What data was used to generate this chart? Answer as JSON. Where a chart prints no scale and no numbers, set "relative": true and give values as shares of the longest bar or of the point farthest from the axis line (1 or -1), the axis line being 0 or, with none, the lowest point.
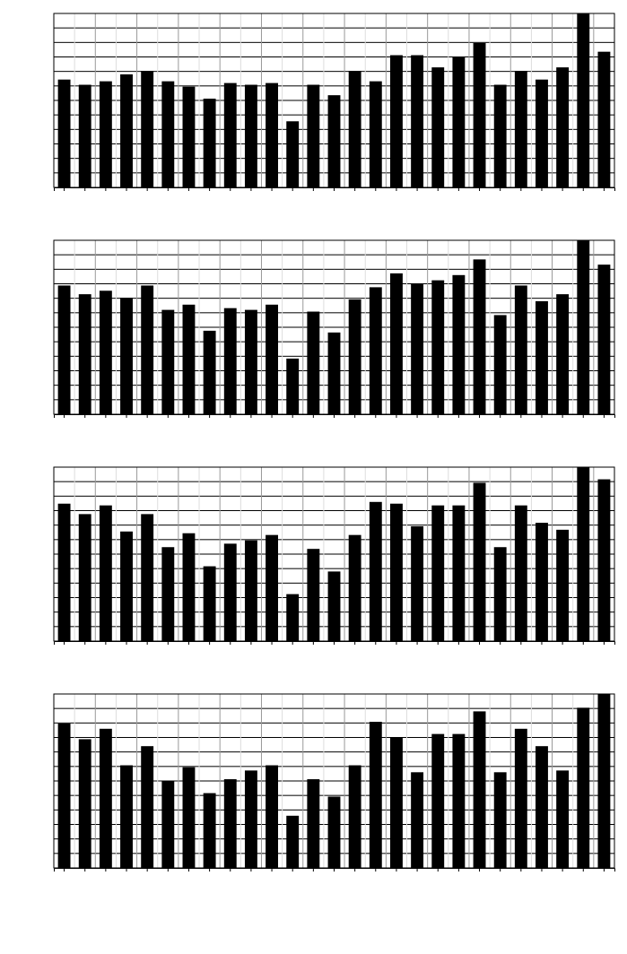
{
  "chart_data": [
    {
      "type": "bar",
      "relative": true,
      "grid": true,
      "color": "#000000",
      "categories": [
        null,
        null,
        null,
        null,
        null,
        null,
        null,
        null,
        null,
        null,
        null,
        null,
        null,
        null,
        null,
        null,
        null,
        null,
        null,
        null,
        null,
        null,
        null,
        null,
        null,
        null,
        null
      ],
      "values": [
        0.62,
        0.59,
        0.61,
        0.65,
        0.67,
        0.61,
        0.58,
        0.51,
        0.6,
        0.59,
        0.6,
        0.38,
        0.59,
        0.53,
        0.67,
        0.61,
        0.76,
        0.76,
        0.69,
        0.75,
        0.83,
        0.59,
        0.67,
        0.62,
        0.69,
        1,
        0.78
      ]
    },
    {
      "type": "bar",
      "relative": true,
      "grid": true,
      "color": "#000000",
      "categories": [
        null,
        null,
        null,
        null,
        null,
        null,
        null,
        null,
        null,
        null,
        null,
        null,
        null,
        null,
        null,
        null,
        null,
        null,
        null,
        null,
        null,
        null,
        null,
        null,
        null,
        null,
        null
      ],
      "values": [
        0.74,
        0.69,
        0.71,
        0.67,
        0.74,
        0.6,
        0.63,
        0.48,
        0.61,
        0.6,
        0.63,
        0.32,
        0.59,
        0.47,
        0.66,
        0.73,
        0.81,
        0.75,
        0.77,
        0.8,
        0.89,
        0.57,
        0.74,
        0.65,
        0.69,
        1,
        0.86
      ]
    },
    {
      "type": "bar",
      "relative": true,
      "grid": true,
      "color": "#000000",
      "categories": [
        null,
        null,
        null,
        null,
        null,
        null,
        null,
        null,
        null,
        null,
        null,
        null,
        null,
        null,
        null,
        null,
        null,
        null,
        null,
        null,
        null,
        null,
        null,
        null,
        null,
        null,
        null
      ],
      "values": [
        0.79,
        0.73,
        0.78,
        0.63,
        0.73,
        0.54,
        0.62,
        0.43,
        0.56,
        0.58,
        0.61,
        0.27,
        0.53,
        0.4,
        0.61,
        0.8,
        0.79,
        0.66,
        0.78,
        0.78,
        0.91,
        0.54,
        0.78,
        0.68,
        0.64,
        1,
        0.93
      ]
    },
    {
      "type": "bar",
      "relative": true,
      "grid": true,
      "color": "#000000",
      "categories": [
        null,
        null,
        null,
        null,
        null,
        null,
        null,
        null,
        null,
        null,
        null,
        null,
        null,
        null,
        null,
        null,
        null,
        null,
        null,
        null,
        null,
        null,
        null,
        null,
        null,
        null,
        null
      ],
      "values": [
        0.83,
        0.74,
        0.8,
        0.59,
        0.7,
        0.5,
        0.58,
        0.43,
        0.51,
        0.56,
        0.59,
        0.3,
        0.51,
        0.41,
        0.59,
        0.84,
        0.75,
        0.55,
        0.77,
        0.77,
        0.9,
        0.55,
        0.8,
        0.7,
        0.56,
        0.92,
        1
      ]
    }
  ]
}
